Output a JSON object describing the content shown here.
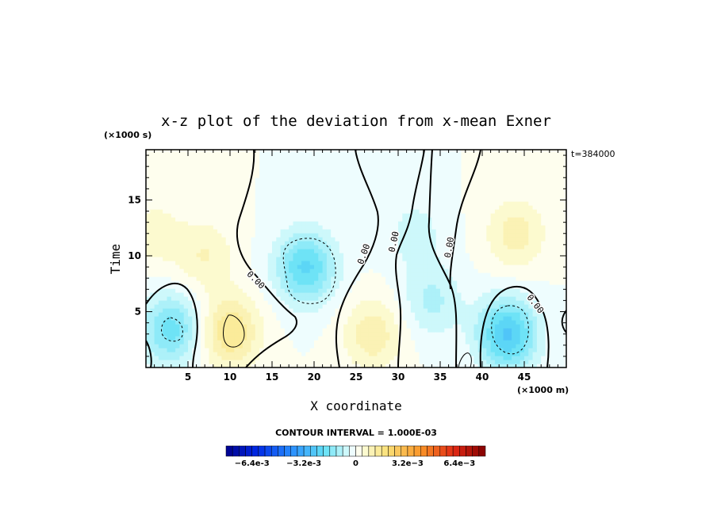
{
  "chart_data": {
    "type": "heatmap",
    "title": "x-z plot of the deviation from x-mean Exner",
    "xlabel": "X coordinate",
    "ylabel": "Time",
    "x_unit": "(×1000 m)",
    "y_unit": "(×1000 s)",
    "time_label": "t=384000",
    "xlim": [
      0,
      50
    ],
    "ylim": [
      0,
      19.5
    ],
    "x_ticks": [
      5,
      10,
      15,
      20,
      25,
      30,
      35,
      40,
      45
    ],
    "y_ticks": [
      5,
      10,
      15
    ],
    "contour_interval": "CONTOUR INTERVAL = 1.000E-03",
    "contour_labels": [
      "0.00",
      "0.00",
      "0.00",
      "0.00",
      "0.00"
    ],
    "colorbar": {
      "range": [
        -0.008,
        0.008
      ],
      "tick_labels": [
        "-6.4e-3",
        "-3.2e-3",
        "0",
        "3.2e-3",
        "6.4e-3"
      ],
      "tick_values": [
        -0.0064,
        -0.0032,
        0,
        0.0032,
        0.0064
      ]
    },
    "field_features": [
      {
        "x": 3,
        "t": 3.5,
        "value": -0.0018
      },
      {
        "x": 10,
        "t": 3.2,
        "value": 0.0016
      },
      {
        "x": 19,
        "t": 9,
        "value": -0.0021
      },
      {
        "x": 43,
        "t": 3,
        "value": -0.0025
      },
      {
        "x": 27,
        "t": 3,
        "value": 0.0011
      },
      {
        "x": 44,
        "t": 12,
        "value": 0.001
      },
      {
        "x": 7,
        "t": 10,
        "value": 0.0008
      },
      {
        "x": 32,
        "t": 12,
        "value": -0.0006
      },
      {
        "x": 34,
        "t": 6,
        "value": -0.0009
      },
      {
        "x": 1,
        "t": 12,
        "value": 0.0006
      }
    ]
  }
}
